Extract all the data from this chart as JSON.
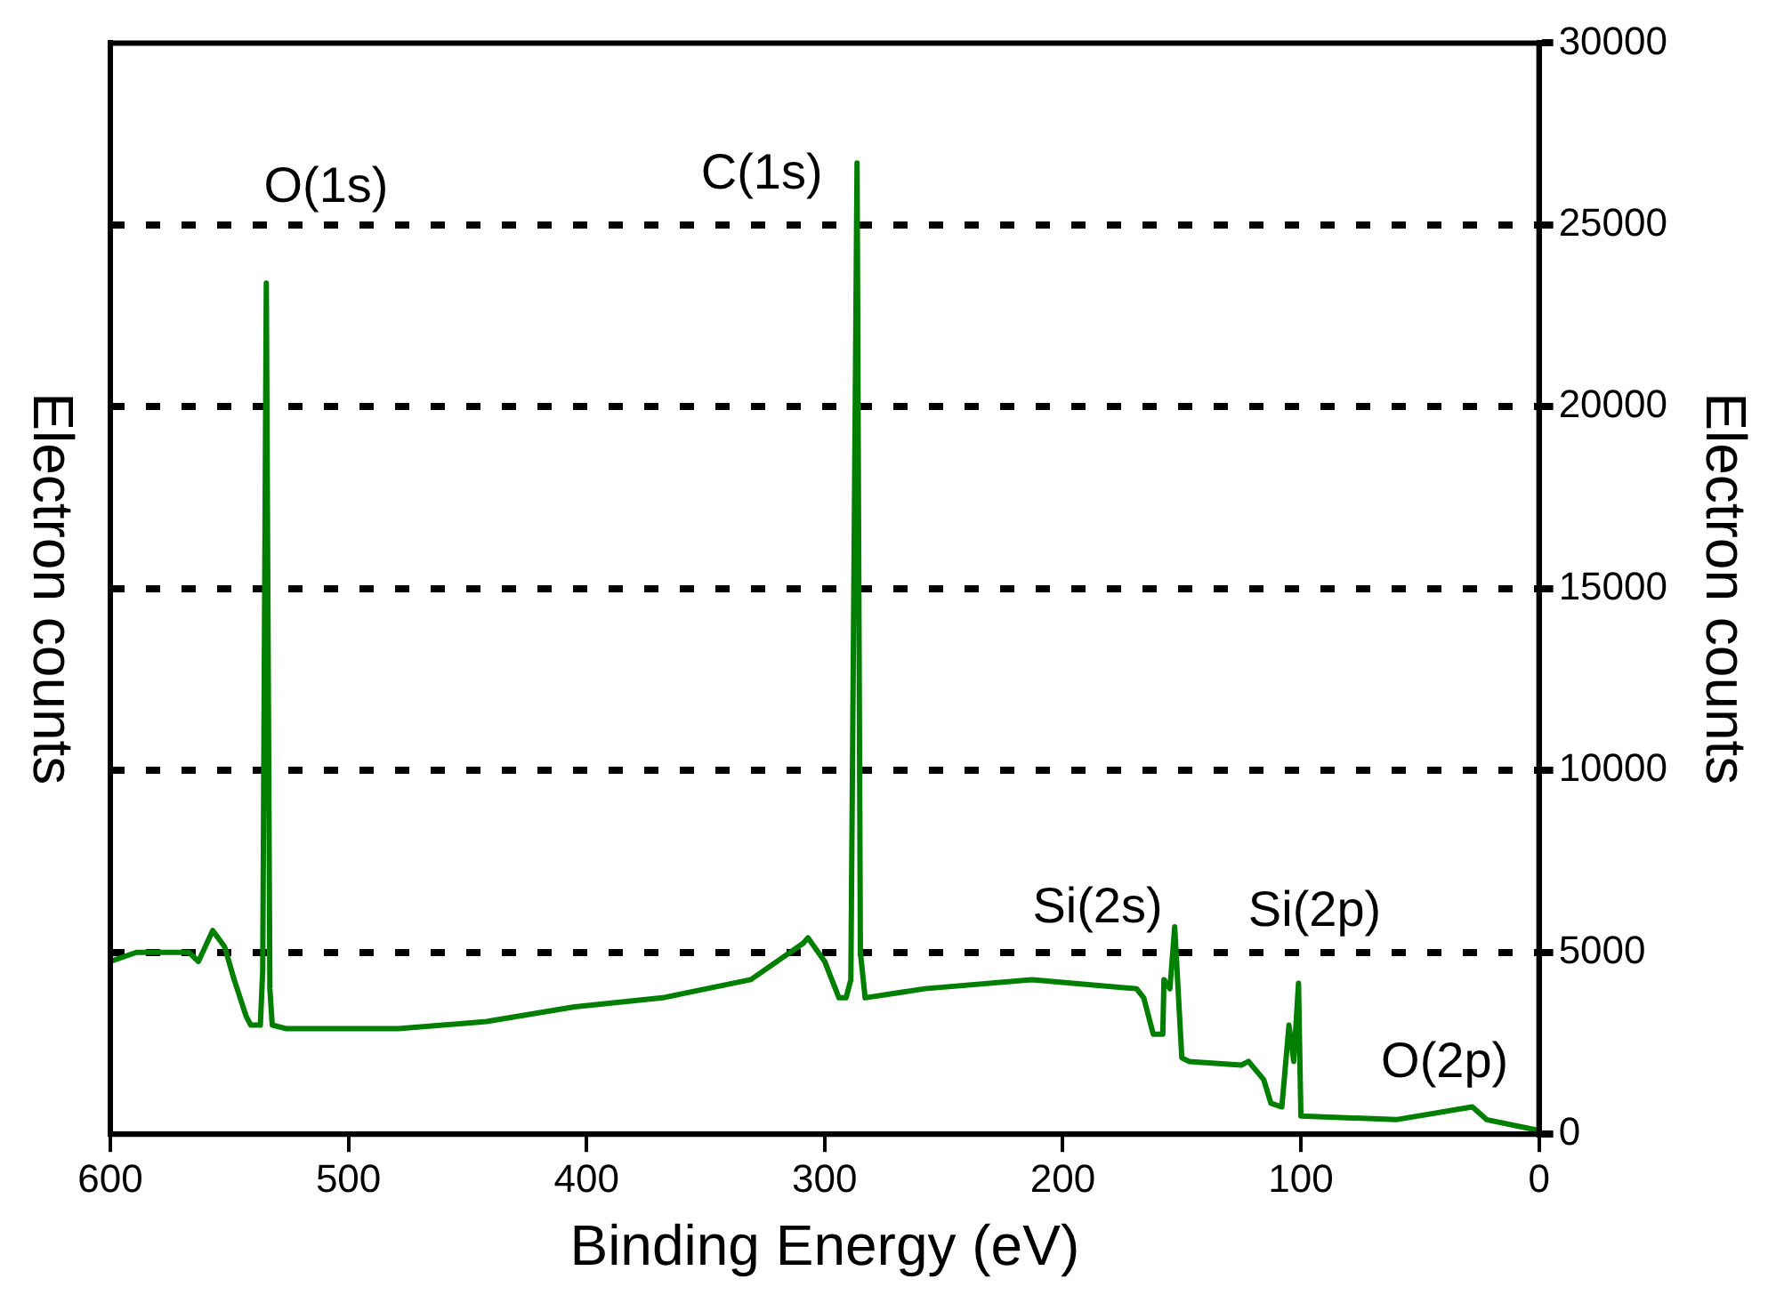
{
  "chart_data": {
    "type": "line",
    "xlabel": "Binding Energy (eV)",
    "ylabel": "Electron counts",
    "y2label": "Electron counts",
    "xlim": [
      600,
      0
    ],
    "xticks": [
      600,
      500,
      400,
      300,
      200,
      100,
      0
    ],
    "y2lim": [
      0,
      30000
    ],
    "y2ticks": [
      0,
      5000,
      10000,
      15000,
      20000,
      25000,
      30000
    ],
    "grid": "y",
    "legend": false,
    "marker": "none",
    "line_style": "solid",
    "series": [
      {
        "color": "#007f00",
        "axis": "y2",
        "x": [
          600,
          589,
          567,
          563,
          557,
          552,
          548,
          543,
          541,
          537,
          536,
          534.5,
          533,
          532,
          526,
          479,
          442,
          405,
          368,
          331,
          309,
          307,
          300,
          294,
          291,
          289,
          286.4,
          285,
          283,
          258,
          213,
          169,
          166,
          162,
          158,
          157.5,
          155,
          153,
          150,
          147,
          125,
          122,
          115.6,
          112.6,
          108,
          105,
          103,
          101,
          100,
          60,
          28,
          22,
          0
        ],
        "values": [
          4750,
          5000,
          5000,
          4750,
          5600,
          5150,
          4250,
          3250,
          3000,
          3000,
          4500,
          23400,
          4000,
          3000,
          2900,
          2900,
          3100,
          3500,
          3750,
          4250,
          5250,
          5400,
          4750,
          3750,
          3750,
          4250,
          26700,
          5000,
          3750,
          4000,
          4250,
          4000,
          3750,
          2750,
          2750,
          4250,
          4000,
          5700,
          2100,
          2000,
          1900,
          2000,
          1500,
          850,
          750,
          3000,
          2000,
          4150,
          500,
          400,
          750,
          400,
          100
        ]
      }
    ],
    "annotations": [
      "O(1s)",
      "C(1s)",
      "Si(2s)",
      "Si(2p)",
      "O(2p)"
    ]
  }
}
